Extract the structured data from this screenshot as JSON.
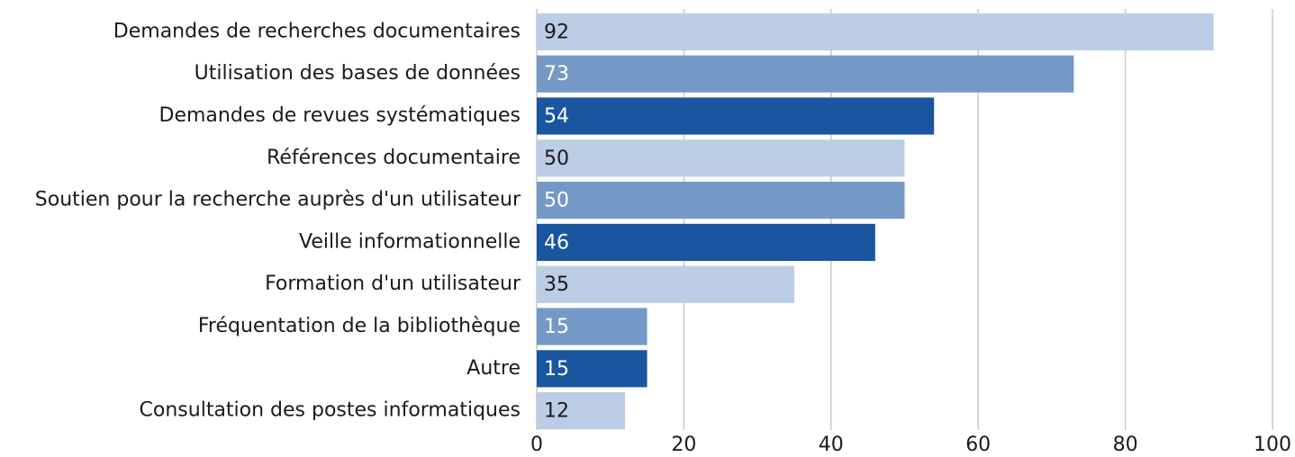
{
  "chart_data": {
    "type": "bar",
    "orientation": "horizontal",
    "categories": [
      "Demandes de recherches documentaires",
      "Utilisation des bases de données",
      "Demandes de revues systématiques",
      "Références documentaire",
      "Soutien pour la recherche auprès d'un utilisateur",
      "Veille informationnelle",
      "Formation d'un utilisateur",
      "Fréquentation de la bibliothèque",
      "Autre",
      "Consultation des postes informatiques"
    ],
    "values": [
      92,
      73,
      54,
      50,
      50,
      46,
      35,
      15,
      15,
      12
    ],
    "colors": [
      "#bccde6",
      "#7599c6",
      "#1a56a0",
      "#bccde6",
      "#7599c6",
      "#1a56a0",
      "#bccde6",
      "#7599c6",
      "#1a56a0",
      "#bccde6"
    ],
    "xlim": [
      0,
      100
    ],
    "xticks": [
      0,
      20,
      40,
      60,
      80,
      100
    ],
    "grid": true
  }
}
